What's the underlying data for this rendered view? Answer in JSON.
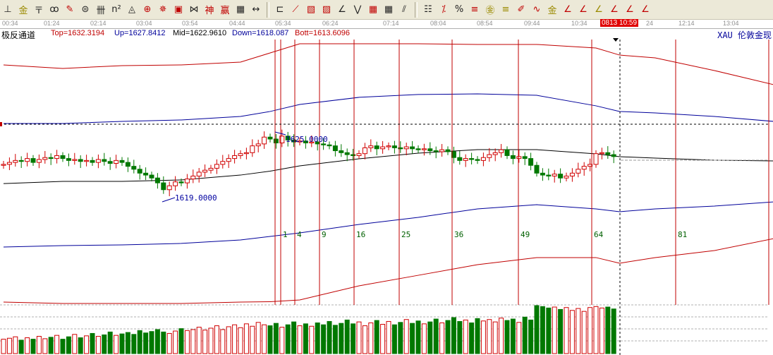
{
  "toolbar": {
    "icons": [
      "gold-line-icon",
      "gold-fan-icon",
      "fib-time-icon",
      "spiral-icon",
      "pen-icon",
      "circle-ruler-icon",
      "parallel-lines-icon",
      "square-n-icon",
      "triangle-icon",
      "target-icon",
      "star-target-icon",
      "square-target-icon",
      "wave-icon",
      "god-icon",
      "win-icon",
      "grid-icon",
      "span-icon",
      "box-icon",
      "fan-icon",
      "square-box-icon",
      "diag-box-icon",
      "angle-icon",
      "zigzag-icon",
      "grid-box-icon",
      "hatched-box-icon",
      "parallel-hatch-icon",
      "stat-icon",
      "percent-line-icon",
      "percent-icon",
      "percent-lines-icon",
      "gold-circle-icon",
      "gold-lines-icon",
      "pencil-icon",
      "sine-icon",
      "gold-bar-icon",
      "j-angle-icon",
      "f-angle-icon",
      "gold-angle-icon",
      "god-angle-icon",
      "win-angle-icon",
      "four-angle-icon"
    ],
    "glyphs": [
      "⊥",
      "金",
      "〒",
      "ꝏ",
      "✎",
      "⊜",
      "卌",
      "n²",
      "◬",
      "⊕",
      "✵",
      "▣",
      "⋈",
      "神",
      "赢",
      "▦",
      "↔",
      "⊏",
      "⟋",
      "▧",
      "▨",
      "∠",
      "⋁",
      "▦",
      "▦",
      "⫽",
      "☷",
      "⁒",
      "%",
      "≡",
      "㊎",
      "≡",
      "✐",
      "∿",
      "金",
      "∠",
      "∠",
      "∠",
      "∠",
      "∠",
      "∠"
    ],
    "glyph_colors": [
      "#222",
      "#9a8a00",
      "#222",
      "#222",
      "#c00000",
      "#222",
      "#222",
      "#222",
      "#222",
      "#c00000",
      "#c00000",
      "#c00000",
      "#222",
      "#c00000",
      "#c00000",
      "#222",
      "#222",
      "#222",
      "#c00000",
      "#c00000",
      "#c00000",
      "#222",
      "#222",
      "#c00000",
      "#222",
      "#222",
      "#222",
      "#c00000",
      "#222",
      "#c00000",
      "#9a8a00",
      "#9a8a00",
      "#c00000",
      "#c00000",
      "#9a8a00",
      "#c00000",
      "#c00000",
      "#9a8a00",
      "#c00000",
      "#c00000",
      "#c00000"
    ]
  },
  "time_axis": {
    "labels": [
      "00:34",
      "01:24",
      "02:14",
      "03:04",
      "03:54",
      "04:44",
      "05:34",
      "06:24",
      "07:14",
      "08:04",
      "08:54",
      "09:44",
      "10:34",
      "24",
      "12:14",
      "13:04"
    ],
    "cursor_time": "0813 10:59"
  },
  "header": {
    "indicator": "极反通道",
    "top": "Top=1632.3194",
    "up": "Up=1627.8412",
    "mid": "Mid=1622.9610",
    "down": "Down=1618.087",
    "bott": "Bott=1613.6096",
    "symbol": "XAU 伦敦金现"
  },
  "colors": {
    "up": "#d00000",
    "down": "#007800",
    "top_band": "#c00000",
    "mid_band": "#000000",
    "up_band": "#00009a",
    "fib_line": "#c00000",
    "label_blue": "#0000a0",
    "fib_label": "#006000"
  },
  "chart_data": {
    "type": "candlestick",
    "closes": [
      1622.4,
      1622.6,
      1622.8,
      1622.7,
      1623.0,
      1622.6,
      1622.9,
      1623.1,
      1623.0,
      1623.3,
      1623.0,
      1622.8,
      1622.9,
      1622.7,
      1622.8,
      1622.6,
      1622.9,
      1622.7,
      1622.5,
      1622.8,
      1622.6,
      1622.2,
      1621.9,
      1621.5,
      1621.3,
      1621.0,
      1620.5,
      1619.8,
      1620.2,
      1620.6,
      1620.5,
      1620.9,
      1621.2,
      1621.6,
      1621.8,
      1622.0,
      1622.4,
      1622.7,
      1623.0,
      1623.3,
      1623.5,
      1623.6,
      1624.3,
      1624.5,
      1625.2,
      1625.0,
      1624.6,
      1625.3,
      1624.9,
      1624.7,
      1624.8,
      1624.6,
      1624.7,
      1624.5,
      1624.4,
      1624.3,
      1623.8,
      1623.6,
      1623.4,
      1623.3,
      1623.5,
      1624.1,
      1624.3,
      1624.0,
      1624.2,
      1624.3,
      1624.1,
      1624.0,
      1624.2,
      1624.0,
      1623.9,
      1624.0,
      1623.8,
      1623.7,
      1623.9,
      1623.7,
      1623.1,
      1622.8,
      1623.0,
      1622.9,
      1622.8,
      1623.1,
      1623.4,
      1623.6,
      1623.9,
      1623.3,
      1623.0,
      1623.2,
      1623.0,
      1622.3,
      1621.5,
      1621.3,
      1621.2,
      1621.4,
      1621.0,
      1621.2,
      1621.5,
      1621.9,
      1622.2,
      1622.4,
      1623.5,
      1623.6,
      1623.4,
      1623.2
    ],
    "volumes": [
      30,
      32,
      35,
      28,
      33,
      30,
      36,
      31,
      34,
      38,
      30,
      35,
      40,
      33,
      37,
      42,
      36,
      39,
      45,
      38,
      41,
      44,
      40,
      48,
      43,
      46,
      50,
      45,
      42,
      47,
      52,
      48,
      50,
      55,
      49,
      53,
      58,
      50,
      56,
      60,
      54,
      62,
      57,
      65,
      60,
      58,
      63,
      55,
      60,
      66,
      58,
      62,
      57,
      64,
      60,
      67,
      59,
      63,
      70,
      62,
      66,
      58,
      64,
      69,
      61,
      67,
      60,
      65,
      71,
      63,
      68,
      62,
      66,
      72,
      64,
      69,
      75,
      67,
      70,
      64,
      73,
      68,
      71,
      66,
      74,
      69,
      72,
      65,
      76,
      70,
      100,
      98,
      95,
      97,
      92,
      96,
      90,
      94,
      88,
      96,
      98,
      95,
      97,
      93
    ],
    "bands": {
      "sample_index": [
        0,
        10,
        20,
        30,
        40,
        45,
        50,
        60,
        70,
        80,
        90,
        100,
        104,
        110,
        120,
        130
      ],
      "top": [
        1632.61,
        1632.25,
        1632.54,
        1632.61,
        1632.9,
        1633.84,
        1634.78,
        1634.78,
        1634.78,
        1634.71,
        1634.71,
        1634.35,
        1633.62,
        1633.33,
        1632.03,
        1630.58
      ],
      "up": [
        1626.59,
        1626.59,
        1626.81,
        1626.96,
        1627.32,
        1627.83,
        1628.55,
        1629.28,
        1629.57,
        1629.64,
        1629.49,
        1628.41,
        1627.83,
        1627.68,
        1627.32,
        1626.81
      ],
      "mid": [
        1620.43,
        1620.65,
        1620.65,
        1620.8,
        1621.3,
        1621.7,
        1622.25,
        1622.97,
        1623.55,
        1623.91,
        1623.91,
        1623.48,
        1623.19,
        1623.04,
        1622.83,
        1622.75
      ],
      "down": [
        1613.91,
        1614.06,
        1614.13,
        1614.28,
        1614.64,
        1615.0,
        1615.36,
        1616.23,
        1616.96,
        1617.83,
        1618.26,
        1617.83,
        1617.54,
        1617.83,
        1618.12,
        1618.55
      ],
      "bott": [
        1608.26,
        1608.12,
        1608.12,
        1608.12,
        1608.26,
        1608.3,
        1608.48,
        1609.93,
        1611.01,
        1612.1,
        1612.83,
        1612.83,
        1612.25,
        1612.83,
        1613.55,
        1614.78
      ]
    },
    "fib_time_labels": [
      "1",
      "4",
      "9",
      "16",
      "25",
      "36",
      "49",
      "64",
      "81"
    ],
    "price_labels": [
      "1619.0000",
      "1625.0000"
    ]
  }
}
